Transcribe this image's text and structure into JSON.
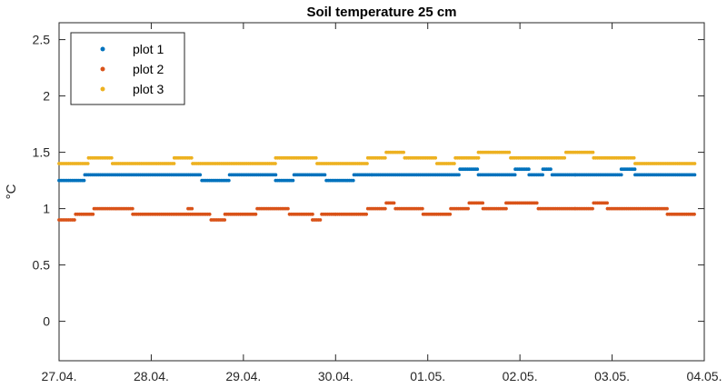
{
  "chart_data": {
    "type": "scatter",
    "title": "Soil temperature 25 cm",
    "xlabel": "",
    "ylabel": "°C",
    "xlim": [
      0,
      7
    ],
    "ylim": [
      -0.35,
      2.65
    ],
    "x_tick_values": [
      0,
      1,
      2,
      3,
      4,
      5,
      6,
      7
    ],
    "x_tick_labels": [
      "27.04.",
      "28.04.",
      "29.04.",
      "30.04.",
      "01.05.",
      "02.05.",
      "03.05.",
      "04.05."
    ],
    "y_ticks": [
      0,
      0.5,
      1,
      1.5,
      2,
      2.5
    ],
    "y_tick_labels": [
      "0",
      "0.5",
      "1",
      "1.5",
      "2",
      "2.5"
    ],
    "grid": false,
    "legend_position": "top-left",
    "series": [
      {
        "name": "plot 1",
        "color": "#0072BD",
        "segments": [
          [
            0.0,
            0.28,
            1.25
          ],
          [
            0.28,
            1.55,
            1.3
          ],
          [
            1.55,
            1.85,
            1.25
          ],
          [
            1.85,
            2.35,
            1.3
          ],
          [
            2.35,
            2.55,
            1.25
          ],
          [
            2.55,
            2.9,
            1.3
          ],
          [
            2.9,
            3.2,
            1.25
          ],
          [
            3.2,
            3.4,
            1.3
          ],
          [
            3.4,
            4.35,
            1.3
          ],
          [
            4.35,
            4.55,
            1.35
          ],
          [
            4.55,
            4.95,
            1.3
          ],
          [
            4.95,
            5.1,
            1.35
          ],
          [
            5.1,
            5.25,
            1.3
          ],
          [
            5.25,
            5.35,
            1.35
          ],
          [
            5.35,
            5.6,
            1.3
          ],
          [
            5.6,
            6.1,
            1.3
          ],
          [
            6.1,
            6.25,
            1.35
          ],
          [
            6.25,
            6.9,
            1.3
          ]
        ]
      },
      {
        "name": "plot 2",
        "color": "#D95319",
        "segments": [
          [
            0.0,
            0.18,
            0.9
          ],
          [
            0.18,
            0.38,
            0.95
          ],
          [
            0.38,
            0.8,
            1.0
          ],
          [
            0.8,
            1.65,
            0.95
          ],
          [
            1.4,
            1.45,
            1.0
          ],
          [
            1.65,
            1.8,
            0.9
          ],
          [
            1.8,
            2.15,
            0.95
          ],
          [
            2.15,
            2.5,
            1.0
          ],
          [
            2.5,
            2.75,
            0.95
          ],
          [
            2.75,
            2.85,
            0.9
          ],
          [
            2.85,
            3.0,
            0.95
          ],
          [
            3.0,
            3.35,
            0.95
          ],
          [
            3.35,
            3.55,
            1.0
          ],
          [
            3.55,
            3.65,
            1.05
          ],
          [
            3.65,
            3.95,
            1.0
          ],
          [
            3.95,
            4.25,
            0.95
          ],
          [
            4.25,
            4.45,
            1.0
          ],
          [
            4.45,
            4.6,
            1.05
          ],
          [
            4.6,
            4.85,
            1.0
          ],
          [
            4.85,
            5.2,
            1.05
          ],
          [
            5.2,
            5.6,
            1.0
          ],
          [
            5.6,
            5.8,
            1.0
          ],
          [
            5.8,
            5.95,
            1.05
          ],
          [
            5.95,
            6.6,
            1.0
          ],
          [
            6.6,
            6.9,
            0.95
          ]
        ]
      },
      {
        "name": "plot 3",
        "color": "#EDB120",
        "segments": [
          [
            0.0,
            0.32,
            1.4
          ],
          [
            0.32,
            0.58,
            1.45
          ],
          [
            0.58,
            1.25,
            1.4
          ],
          [
            1.25,
            1.45,
            1.45
          ],
          [
            1.45,
            2.35,
            1.4
          ],
          [
            2.35,
            2.8,
            1.45
          ],
          [
            2.8,
            3.35,
            1.4
          ],
          [
            3.35,
            3.55,
            1.45
          ],
          [
            3.55,
            3.75,
            1.5
          ],
          [
            3.75,
            4.1,
            1.45
          ],
          [
            4.1,
            4.3,
            1.4
          ],
          [
            4.3,
            4.55,
            1.45
          ],
          [
            4.55,
            4.9,
            1.5
          ],
          [
            4.9,
            5.5,
            1.45
          ],
          [
            5.5,
            5.8,
            1.5
          ],
          [
            5.8,
            6.25,
            1.45
          ],
          [
            6.25,
            6.9,
            1.4
          ]
        ]
      }
    ]
  }
}
